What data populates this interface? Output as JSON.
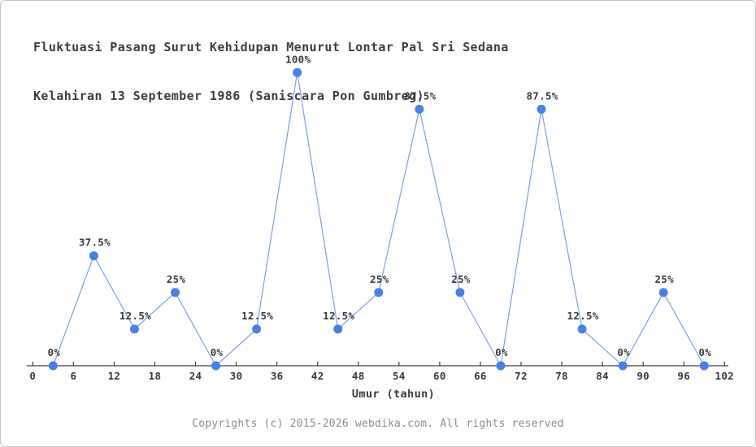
{
  "title_line1": "Fluktuasi Pasang Surut Kehidupan Menurut Lontar Pal Sri Sedana",
  "title_line2": "Kelahiran 13 September 1986 (Saniscara Pon Gumbreg)",
  "footer": "Copyrights (c) 2015-2026 webdika.com. All rights reserved",
  "colors": {
    "marker": "#4a80e2",
    "line": "#7aa0e2",
    "axis": "#3c3c3c",
    "tick_label": "#383838",
    "point_label": "#3a3a3a",
    "title_text": "#3d3d3d",
    "footer_text": "#8c8c8c",
    "border": "#c6c6c6",
    "background": "#ffffff"
  },
  "chart_data": {
    "type": "line",
    "title": "Fluktuasi Pasang Surut Kehidupan Menurut Lontar Pal Sri Sedana Kelahiran 13 September 1986 (Saniscara Pon Gumbreg)",
    "xlabel": "Umur (tahun)",
    "ylabel": "",
    "xlim": [
      0,
      102
    ],
    "ylim": [
      0,
      100
    ],
    "grid": false,
    "legend_position": "none",
    "x_ticks": [
      0,
      6,
      12,
      18,
      24,
      30,
      36,
      42,
      48,
      54,
      60,
      66,
      72,
      78,
      84,
      90,
      96,
      102
    ],
    "x": [
      3,
      9,
      15,
      21,
      27,
      33,
      39,
      45,
      51,
      57,
      63,
      69,
      75,
      81,
      87,
      93,
      99
    ],
    "values": [
      0,
      37.5,
      12.5,
      25,
      0,
      12.5,
      100,
      12.5,
      25,
      87.5,
      25,
      0,
      87.5,
      12.5,
      0,
      25,
      0
    ],
    "point_labels": [
      "0%",
      "37.5%",
      "12.5%",
      "25%",
      "0%",
      "12.5%",
      "100%",
      "12.5%",
      "25%",
      "87.5%",
      "25%",
      "0%",
      "87.5%",
      "12.5%",
      "0%",
      "25%",
      "0%"
    ]
  }
}
